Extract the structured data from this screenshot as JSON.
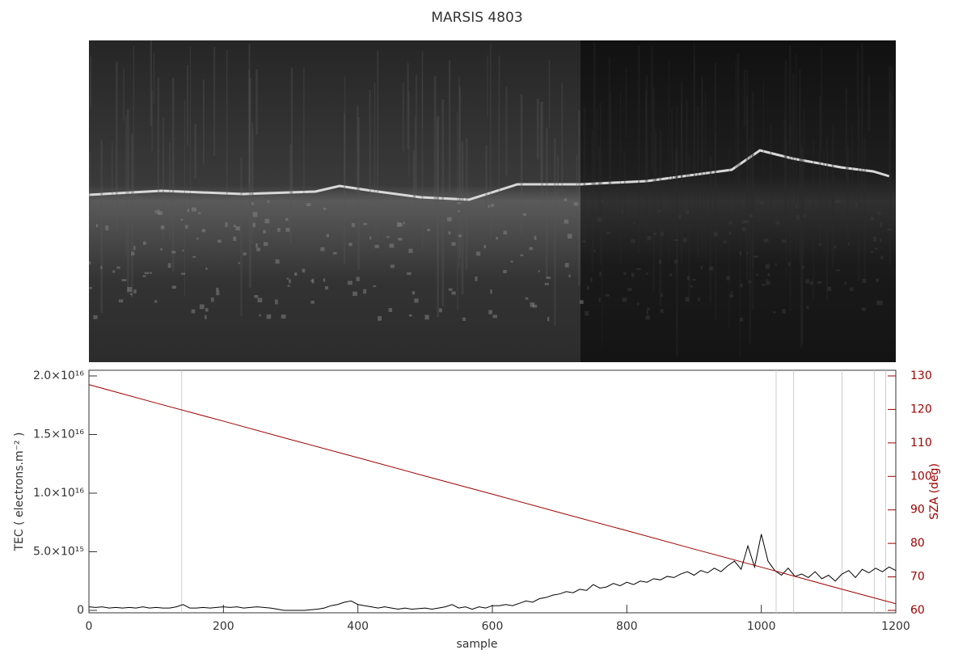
{
  "chart_data": {
    "type": "line",
    "title": "MARSIS 4803",
    "x_label": "sample",
    "y_label": "TEC ( electrons.m⁻² )",
    "y2_label": "SZA (deg)",
    "xlim": [
      0,
      1200
    ],
    "xticks": [
      0,
      200,
      400,
      600,
      800,
      1000,
      1200
    ],
    "ylim": [
      0,
      2e+16
    ],
    "yticks": [
      0,
      {
        "value": 5000000000000000.0,
        "label": "5.0×10¹⁵"
      },
      {
        "value": 1e+16,
        "label": "1.0×10¹⁶"
      },
      {
        "value": 1.5e+16,
        "label": "1.5×10¹⁶"
      },
      {
        "value": 2e+16,
        "label": "2.0×10¹⁶"
      }
    ],
    "y2lim": [
      60,
      130
    ],
    "y2ticks": [
      60,
      70,
      80,
      90,
      100,
      110,
      120,
      130
    ],
    "y2_color": "#a00000",
    "vertical_lines": [
      138,
      1022,
      1048,
      1120,
      1168,
      1185
    ],
    "series": [
      {
        "color": "#000000",
        "x": [
          0,
          10,
          20,
          30,
          40,
          50,
          60,
          70,
          80,
          90,
          100,
          110,
          120,
          130,
          140,
          150,
          160,
          170,
          180,
          190,
          200,
          210,
          220,
          230,
          240,
          250,
          260,
          270,
          280,
          290,
          300,
          310,
          320,
          330,
          340,
          350,
          360,
          370,
          380,
          390,
          400,
          410,
          420,
          430,
          440,
          450,
          460,
          470,
          480,
          490,
          500,
          510,
          520,
          530,
          540,
          550,
          560,
          570,
          580,
          590,
          600,
          610,
          620,
          630,
          640,
          650,
          660,
          670,
          680,
          690,
          700,
          710,
          720,
          730,
          740,
          750,
          760,
          770,
          780,
          790,
          800,
          810,
          820,
          830,
          840,
          850,
          860,
          870,
          880,
          890,
          900,
          910,
          920,
          930,
          940,
          950,
          960,
          970,
          980,
          990,
          1000,
          1010,
          1020,
          1030,
          1040,
          1050,
          1060,
          1070,
          1080,
          1090,
          1100,
          1110,
          1120,
          1130,
          1140,
          1150,
          1160,
          1170,
          1180,
          1190,
          1200
        ],
        "values": [
          300000000000000.0,
          250000000000000.0,
          300000000000000.0,
          200000000000000.0,
          250000000000000.0,
          200000000000000.0,
          250000000000000.0,
          200000000000000.0,
          300000000000000.0,
          200000000000000.0,
          250000000000000.0,
          200000000000000.0,
          200000000000000.0,
          300000000000000.0,
          500000000000000.0,
          200000000000000.0,
          200000000000000.0,
          250000000000000.0,
          200000000000000.0,
          250000000000000.0,
          300000000000000.0,
          250000000000000.0,
          300000000000000.0,
          200000000000000.0,
          250000000000000.0,
          300000000000000.0,
          250000000000000.0,
          200000000000000.0,
          100000000000000.0,
          0,
          0,
          0,
          0,
          50000000000000.0,
          100000000000000.0,
          200000000000000.0,
          400000000000000.0,
          500000000000000.0,
          700000000000000.0,
          800000000000000.0,
          500000000000000.0,
          400000000000000.0,
          300000000000000.0,
          200000000000000.0,
          300000000000000.0,
          200000000000000.0,
          100000000000000.0,
          200000000000000.0,
          100000000000000.0,
          150000000000000.0,
          200000000000000.0,
          100000000000000.0,
          200000000000000.0,
          300000000000000.0,
          500000000000000.0,
          200000000000000.0,
          300000000000000.0,
          100000000000000.0,
          300000000000000.0,
          200000000000000.0,
          400000000000000.0,
          400000000000000.0,
          500000000000000.0,
          400000000000000.0,
          600000000000000.0,
          800000000000000.0,
          700000000000000.0,
          1000000000000000.0,
          1100000000000000.0,
          1300000000000000.0,
          1400000000000000.0,
          1600000000000000.0,
          1500000000000000.0,
          1800000000000000.0,
          1700000000000000.0,
          2200000000000000.0,
          1900000000000000.0,
          2000000000000000.0,
          2300000000000000.0,
          2100000000000000.0,
          2400000000000000.0,
          2200000000000000.0,
          2500000000000000.0,
          2400000000000000.0,
          2700000000000000.0,
          2600000000000000.0,
          2900000000000000.0,
          2800000000000000.0,
          3100000000000000.0,
          3300000000000000.0,
          3000000000000000.0,
          3400000000000000.0,
          3200000000000000.0,
          3600000000000000.0,
          3300000000000000.0,
          3800000000000000.0,
          4200000000000000.0,
          3500000000000000.0,
          5500000000000000.0,
          3700000000000000.0,
          6500000000000000.0,
          4200000000000000.0,
          3400000000000000.0,
          3000000000000000.0,
          3600000000000000.0,
          2900000000000000.0,
          3100000000000000.0,
          2800000000000000.0,
          3300000000000000.0,
          2700000000000000.0,
          3000000000000000.0,
          2500000000000000.0,
          3100000000000000.0,
          3400000000000000.0,
          2800000000000000.0,
          3500000000000000.0,
          3200000000000000.0,
          3600000000000000.0,
          3300000000000000.0,
          3700000000000000.0,
          3400000000000000.0
        ]
      },
      {
        "color": "#a00000",
        "axis": "y2",
        "x": [
          0,
          100,
          200,
          300,
          400,
          500,
          600,
          700,
          800,
          900,
          1000,
          1100,
          1200
        ],
        "values": [
          127.4,
          121.9,
          116.5,
          111,
          105.6,
          100.1,
          94.7,
          89.2,
          83.8,
          78.3,
          72.9,
          67.4,
          62
        ]
      }
    ]
  }
}
